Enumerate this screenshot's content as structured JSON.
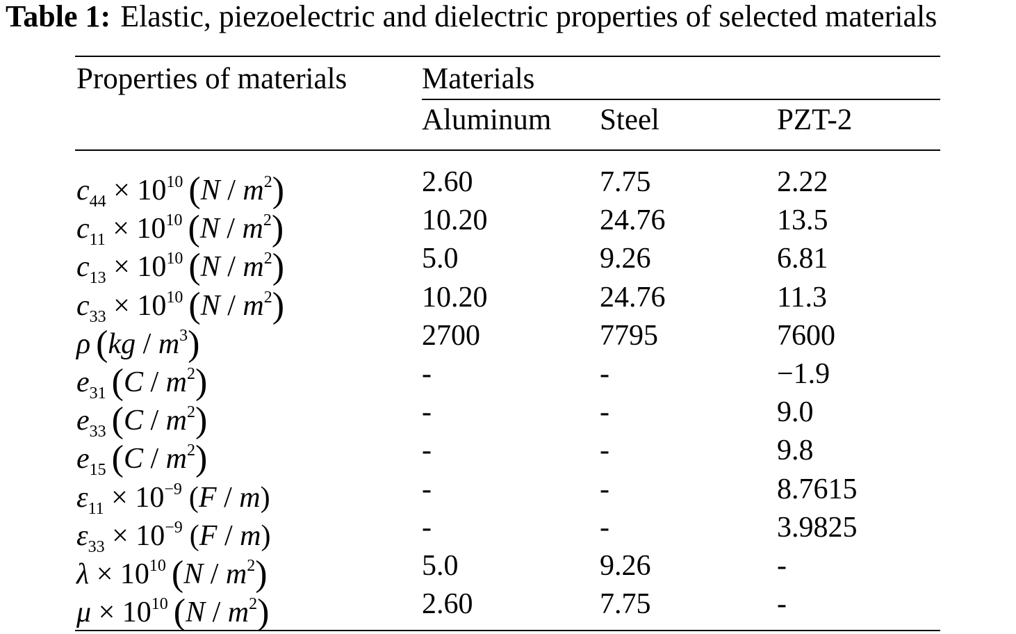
{
  "caption": {
    "label": "Table 1:",
    "text": "Elastic, piezoelectric and dielectric properties of selected materials"
  },
  "header": {
    "properties": "Properties of materials",
    "materials": "Materials",
    "columns": [
      "Aluminum",
      "Steel",
      "PZT-2"
    ]
  },
  "rows": [
    {
      "symbol": "c",
      "symbol_sub": "44",
      "factor": "× 10",
      "factor_exp": "10",
      "unit_num": "N",
      "unit_den": "m",
      "unit_exp": "2",
      "paren_style": "big",
      "values": [
        "2.60",
        "7.75",
        "2.22"
      ]
    },
    {
      "symbol": "c",
      "symbol_sub": "11",
      "factor": "× 10",
      "factor_exp": "10",
      "unit_num": "N",
      "unit_den": "m",
      "unit_exp": "2",
      "paren_style": "big",
      "values": [
        "10.20",
        "24.76",
        "13.5"
      ]
    },
    {
      "symbol": "c",
      "symbol_sub": "13",
      "factor": "× 10",
      "factor_exp": "10",
      "unit_num": "N",
      "unit_den": "m",
      "unit_exp": "2",
      "paren_style": "big",
      "values": [
        "5.0",
        "9.26",
        "6.81"
      ]
    },
    {
      "symbol": "c",
      "symbol_sub": "33",
      "factor": "× 10",
      "factor_exp": "10",
      "unit_num": "N",
      "unit_den": "m",
      "unit_exp": "2",
      "paren_style": "big",
      "values": [
        "10.20",
        "24.76",
        "11.3"
      ]
    },
    {
      "symbol": "ρ",
      "symbol_sub": "",
      "factor": "",
      "factor_exp": "",
      "unit_num": "kg",
      "unit_den": "m",
      "unit_exp": "3",
      "paren_style": "big",
      "values": [
        "2700",
        "7795",
        "7600"
      ]
    },
    {
      "symbol": "e",
      "symbol_sub": "31",
      "factor": "",
      "factor_exp": "",
      "unit_num": "C",
      "unit_den": "m",
      "unit_exp": "2",
      "paren_style": "big",
      "values": [
        "-",
        "-",
        "−1.9"
      ]
    },
    {
      "symbol": "e",
      "symbol_sub": "33",
      "factor": "",
      "factor_exp": "",
      "unit_num": "C",
      "unit_den": "m",
      "unit_exp": "2",
      "paren_style": "big",
      "values": [
        "-",
        "-",
        "9.0"
      ]
    },
    {
      "symbol": "e",
      "symbol_sub": "15",
      "factor": "",
      "factor_exp": "",
      "unit_num": "C",
      "unit_den": "m",
      "unit_exp": "2",
      "paren_style": "big",
      "values": [
        "-",
        "-",
        "9.8"
      ]
    },
    {
      "symbol": "ε",
      "symbol_sub": "11",
      "factor": "× 10",
      "factor_exp": "−9",
      "unit_num": "F",
      "unit_den": "m",
      "unit_exp": "",
      "paren_style": "plain",
      "values": [
        "-",
        "-",
        "8.7615"
      ]
    },
    {
      "symbol": "ε",
      "symbol_sub": "33",
      "factor": "× 10",
      "factor_exp": "−9",
      "unit_num": "F",
      "unit_den": "m",
      "unit_exp": "",
      "paren_style": "plain",
      "values": [
        "-",
        "-",
        "3.9825"
      ]
    },
    {
      "symbol": "λ",
      "symbol_sub": "",
      "factor": "× 10",
      "factor_exp": "10",
      "unit_num": "N",
      "unit_den": "m",
      "unit_exp": "2",
      "paren_style": "big",
      "values": [
        "5.0",
        "9.26",
        "-"
      ]
    },
    {
      "symbol": "μ",
      "symbol_sub": "",
      "factor": "× 10",
      "factor_exp": "10",
      "unit_num": "N",
      "unit_den": "m",
      "unit_exp": "2",
      "paren_style": "big",
      "values": [
        "2.60",
        "7.75",
        "-"
      ]
    }
  ]
}
